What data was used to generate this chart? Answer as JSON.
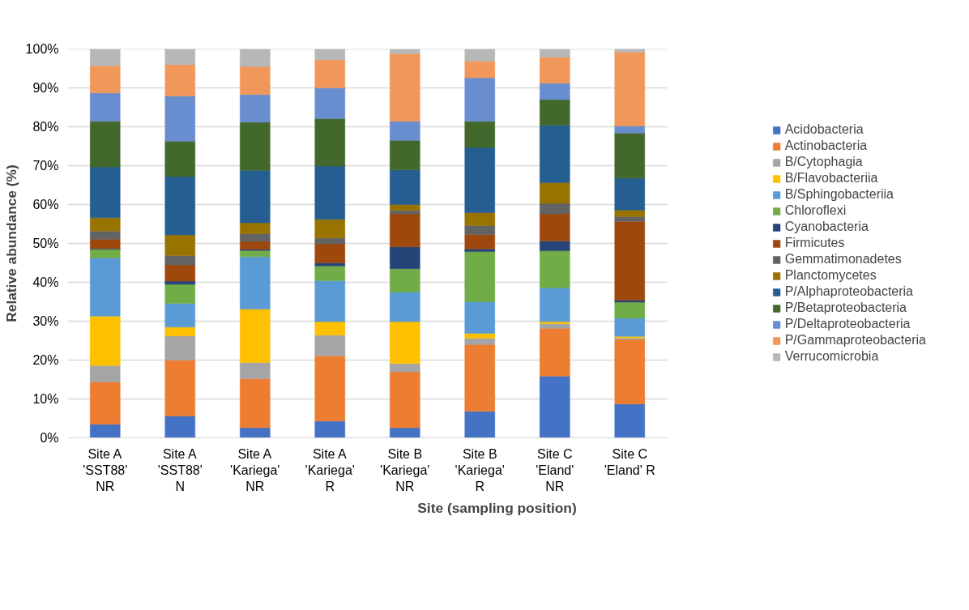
{
  "chart_data": {
    "type": "bar",
    "stacked": true,
    "xlabel": "Site (sampling position)",
    "ylabel": "Relative abundance (%)",
    "categories": [
      "Site A\n'SST88'\nNR",
      "Site A\n'SST88'\nN",
      "Site A\n'Kariega'\nNR",
      "Site A\n'Kariega'\nR",
      "Site B\n'Kariega'\nNR",
      "Site B\n'Kariega'\nR",
      "Site C\n'Eland'\nNR",
      "Site C\n'Eland' R"
    ],
    "ylim": [
      0,
      100
    ],
    "yticks": [
      {
        "value": 0,
        "label": "0%"
      },
      {
        "value": 10,
        "label": "10%"
      },
      {
        "value": 20,
        "label": "20%"
      },
      {
        "value": 30,
        "label": "30%"
      },
      {
        "value": 40,
        "label": "40%"
      },
      {
        "value": 50,
        "label": "50%"
      },
      {
        "value": 60,
        "label": "60%"
      },
      {
        "value": 70,
        "label": "70%"
      },
      {
        "value": 80,
        "label": "80%"
      },
      {
        "value": 90,
        "label": "90%"
      },
      {
        "value": 100,
        "label": "100%"
      }
    ],
    "grid": "y",
    "legend": "right",
    "series": [
      {
        "name": "Acidobacteria",
        "color": "#4472c4",
        "values": [
          3.5,
          5.6,
          2.6,
          4.3,
          2.6,
          6.8,
          15.9,
          8.7
        ]
      },
      {
        "name": "Actinobacteria",
        "color": "#ed7d31",
        "values": [
          10.9,
          14.4,
          12.6,
          16.8,
          14.4,
          17.2,
          12.3,
          16.6
        ]
      },
      {
        "name": "B/Cytophagia",
        "color": "#a5a5a5",
        "values": [
          4.2,
          6.2,
          4.2,
          5.3,
          2.1,
          1.6,
          1.2,
          0.4
        ]
      },
      {
        "name": "B/Flavobacteriia",
        "color": "#ffc000",
        "values": [
          12.7,
          2.3,
          13.7,
          3.5,
          10.8,
          1.3,
          0.5,
          0.4
        ]
      },
      {
        "name": "B/Sphingobacteriia",
        "color": "#5b9bd5",
        "values": [
          15.0,
          6.1,
          13.5,
          10.5,
          7.6,
          8.1,
          8.7,
          4.7
        ]
      },
      {
        "name": "Chloroflexi",
        "color": "#70ad47",
        "values": [
          2.2,
          4.9,
          1.6,
          3.8,
          6.0,
          12.9,
          9.5,
          4.1
        ]
      },
      {
        "name": "Cyanobacteria",
        "color": "#264478",
        "values": [
          0.2,
          0.8,
          0.3,
          0.8,
          5.6,
          0.7,
          2.5,
          0.5
        ]
      },
      {
        "name": "Firmicutes",
        "color": "#9e480e",
        "values": [
          2.4,
          4.2,
          2.0,
          4.9,
          8.5,
          3.7,
          7.0,
          20.3
        ]
      },
      {
        "name": "Gemmatimonadetes",
        "color": "#636363",
        "values": [
          2.1,
          2.4,
          2.0,
          1.5,
          0.9,
          2.3,
          2.7,
          1.2
        ]
      },
      {
        "name": "Planctomycetes",
        "color": "#997300",
        "values": [
          3.4,
          5.3,
          2.8,
          4.8,
          1.5,
          3.3,
          5.3,
          1.7
        ]
      },
      {
        "name": "P/Alphaproteobacteria",
        "color": "#255e91",
        "values": [
          13.1,
          15.0,
          13.5,
          13.7,
          8.9,
          16.8,
          14.8,
          8.2
        ]
      },
      {
        "name": "P/Betaproteobacteria",
        "color": "#43682b",
        "values": [
          11.7,
          9.1,
          12.4,
          12.2,
          7.6,
          6.7,
          6.6,
          11.6
        ]
      },
      {
        "name": "P/Deltaproteobacteria",
        "color": "#698ed0",
        "values": [
          7.3,
          11.6,
          7.1,
          7.9,
          4.9,
          11.2,
          4.2,
          1.8
        ]
      },
      {
        "name": "P/Gammaproteobacteria",
        "color": "#f1975a",
        "values": [
          7.0,
          8.1,
          7.2,
          7.2,
          17.4,
          4.3,
          6.7,
          19.0
        ]
      },
      {
        "name": "Verrucomicrobia",
        "color": "#b7b7b7",
        "values": [
          4.3,
          4.0,
          4.5,
          2.8,
          1.2,
          3.1,
          2.1,
          0.8
        ]
      }
    ]
  }
}
